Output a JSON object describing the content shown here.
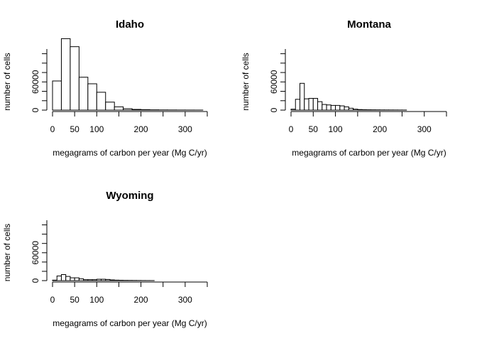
{
  "chart_data": [
    {
      "type": "bar",
      "title": "Idaho",
      "xlabel": "megagrams of carbon per year (Mg C/yr)",
      "ylabel": "number of cells",
      "xlim": [
        0,
        350
      ],
      "ylim": [
        0,
        130000
      ],
      "x_ticks": [
        0,
        50,
        100,
        200,
        300
      ],
      "y_ticks": [
        0,
        60000
      ],
      "bin_width": 20,
      "bin_starts": [
        0,
        20,
        40,
        60,
        80,
        100,
        120,
        140,
        160,
        180,
        200,
        220,
        240,
        260,
        280,
        300,
        320
      ],
      "values": [
        62000,
        152000,
        135000,
        70000,
        56000,
        38000,
        17000,
        7000,
        3000,
        1500,
        1000,
        600,
        400,
        300,
        200,
        150,
        100
      ]
    },
    {
      "type": "bar",
      "title": "Montana",
      "xlabel": "megagrams of carbon per year (Mg C/yr)",
      "ylabel": "number of cells",
      "xlim": [
        0,
        350
      ],
      "ylim": [
        0,
        130000
      ],
      "x_ticks": [
        0,
        50,
        100,
        200,
        300
      ],
      "y_ticks": [
        0,
        60000
      ],
      "bin_width": 10,
      "bin_starts": [
        0,
        10,
        20,
        30,
        40,
        50,
        60,
        70,
        80,
        90,
        100,
        110,
        120,
        130,
        140,
        150,
        160,
        170,
        180,
        190,
        200,
        210,
        220,
        230,
        240,
        250
      ],
      "values": [
        2000,
        23000,
        57000,
        24000,
        25000,
        25000,
        18000,
        12000,
        11000,
        10000,
        10000,
        9000,
        7000,
        4000,
        2000,
        1200,
        900,
        700,
        600,
        500,
        400,
        350,
        300,
        250,
        200,
        150
      ]
    },
    {
      "type": "bar",
      "title": "Wyoming",
      "xlabel": "megagrams of carbon per year (Mg C/yr)",
      "ylabel": "number of cells",
      "xlim": [
        0,
        350
      ],
      "ylim": [
        0,
        130000
      ],
      "x_ticks": [
        0,
        50,
        100,
        200,
        300
      ],
      "y_ticks": [
        0,
        60000
      ],
      "bin_width": 10,
      "bin_starts": [
        0,
        10,
        20,
        30,
        40,
        50,
        60,
        70,
        80,
        90,
        100,
        110,
        120,
        130,
        140,
        150,
        160,
        170,
        180,
        190,
        200,
        210,
        220
      ],
      "values": [
        1000,
        10000,
        13000,
        9000,
        6000,
        6000,
        4000,
        2000,
        2000,
        2000,
        3000,
        3000,
        2500,
        1500,
        1000,
        800,
        600,
        500,
        400,
        300,
        200,
        150,
        100
      ]
    }
  ]
}
